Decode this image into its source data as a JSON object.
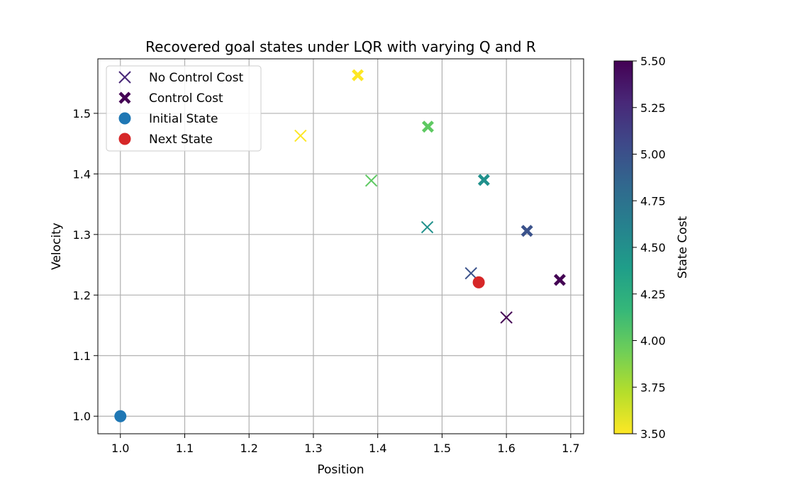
{
  "chart_data": {
    "type": "scatter",
    "title": "Recovered goal states under LQR with varying Q and R",
    "xlabel": "Position",
    "ylabel": "Velocity",
    "xlim": [
      0.965,
      1.72
    ],
    "ylim": [
      0.971,
      1.59
    ],
    "xticks": [
      {
        "value": 1.0,
        "label": "1.0"
      },
      {
        "value": 1.1,
        "label": "1.1"
      },
      {
        "value": 1.2,
        "label": "1.2"
      },
      {
        "value": 1.3,
        "label": "1.3"
      },
      {
        "value": 1.4,
        "label": "1.4"
      },
      {
        "value": 1.5,
        "label": "1.5"
      },
      {
        "value": 1.6,
        "label": "1.6"
      },
      {
        "value": 1.7,
        "label": "1.7"
      }
    ],
    "yticks": [
      {
        "value": 1.0,
        "label": "1.0"
      },
      {
        "value": 1.1,
        "label": "1.1"
      },
      {
        "value": 1.2,
        "label": "1.2"
      },
      {
        "value": 1.3,
        "label": "1.3"
      },
      {
        "value": 1.4,
        "label": "1.4"
      },
      {
        "value": 1.5,
        "label": "1.5"
      }
    ],
    "grid": true,
    "legend_position": "top-left",
    "series": [
      {
        "name": "No Control Cost",
        "marker": "x",
        "points": [
          {
            "x": 1.6,
            "y": 1.163,
            "state_cost": 5.5,
            "color": "#440154"
          },
          {
            "x": 1.545,
            "y": 1.236,
            "state_cost": 5.0,
            "color": "#3b528b"
          },
          {
            "x": 1.477,
            "y": 1.312,
            "state_cost": 4.5,
            "color": "#21918c"
          },
          {
            "x": 1.39,
            "y": 1.389,
            "state_cost": 4.0,
            "color": "#5ec962"
          },
          {
            "x": 1.28,
            "y": 1.463,
            "state_cost": 3.5,
            "color": "#fde725"
          }
        ]
      },
      {
        "name": "Control Cost",
        "marker": "X",
        "points": [
          {
            "x": 1.683,
            "y": 1.225,
            "state_cost": 5.5,
            "color": "#440154"
          },
          {
            "x": 1.632,
            "y": 1.306,
            "state_cost": 5.0,
            "color": "#3b528b"
          },
          {
            "x": 1.565,
            "y": 1.39,
            "state_cost": 4.5,
            "color": "#21918c"
          },
          {
            "x": 1.478,
            "y": 1.478,
            "state_cost": 4.0,
            "color": "#5ec962"
          },
          {
            "x": 1.369,
            "y": 1.563,
            "state_cost": 3.5,
            "color": "#fde725"
          }
        ]
      },
      {
        "name": "Initial State",
        "marker": "o",
        "color": "#1f77b4",
        "points": [
          {
            "x": 1.0,
            "y": 1.0
          }
        ]
      },
      {
        "name": "Next State",
        "marker": "o",
        "color": "#d62728",
        "points": [
          {
            "x": 1.557,
            "y": 1.221
          }
        ]
      }
    ],
    "legend": {
      "items": [
        {
          "label": "No Control Cost",
          "marker": "x",
          "color": "#482878"
        },
        {
          "label": "Control Cost",
          "marker": "X",
          "color": "#440154"
        },
        {
          "label": "Initial State",
          "marker": "o",
          "color": "#1f77b4"
        },
        {
          "label": "Next State",
          "marker": "o",
          "color": "#d62728"
        }
      ]
    },
    "colorbar": {
      "label": "State Cost",
      "range": [
        3.5,
        5.5
      ],
      "colormap": "viridis",
      "stops": [
        "#fde725",
        "#b5de2b",
        "#6ece58",
        "#35b779",
        "#1f9e89",
        "#26828e",
        "#31688e",
        "#3e4989",
        "#482878",
        "#440154"
      ],
      "ticks": [
        {
          "value": 3.5,
          "label": "3.50"
        },
        {
          "value": 3.75,
          "label": "3.75"
        },
        {
          "value": 4.0,
          "label": "4.00"
        },
        {
          "value": 4.25,
          "label": "4.25"
        },
        {
          "value": 4.5,
          "label": "4.50"
        },
        {
          "value": 4.75,
          "label": "4.75"
        },
        {
          "value": 5.0,
          "label": "5.00"
        },
        {
          "value": 5.25,
          "label": "5.25"
        },
        {
          "value": 5.5,
          "label": "5.50"
        }
      ]
    }
  }
}
